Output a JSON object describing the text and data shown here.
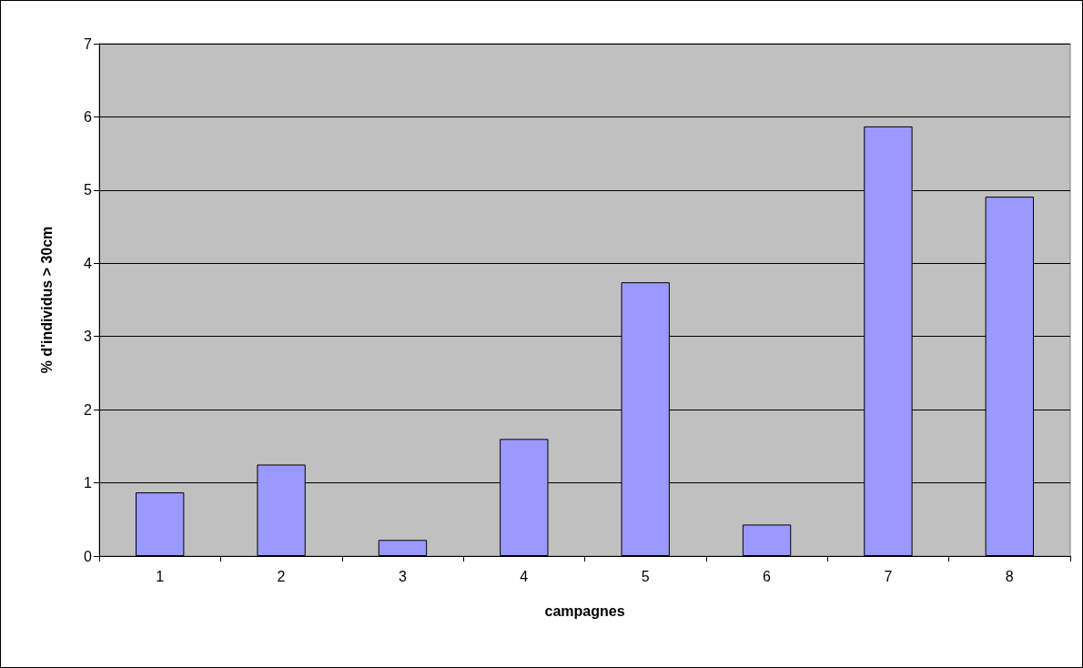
{
  "chart_data": {
    "type": "bar",
    "xlabel": "campagnes",
    "ylabel": "% d'individus > 30cm",
    "categories": [
      "1",
      "2",
      "3",
      "4",
      "5",
      "6",
      "7",
      "8"
    ],
    "values": [
      0.87,
      1.25,
      0.22,
      1.6,
      3.74,
      0.43,
      5.87,
      4.91
    ],
    "color": "#9999ff",
    "ylim": [
      0,
      7
    ],
    "yticks": [
      0,
      1,
      2,
      3,
      4,
      5,
      6,
      7
    ],
    "grid": "y"
  }
}
